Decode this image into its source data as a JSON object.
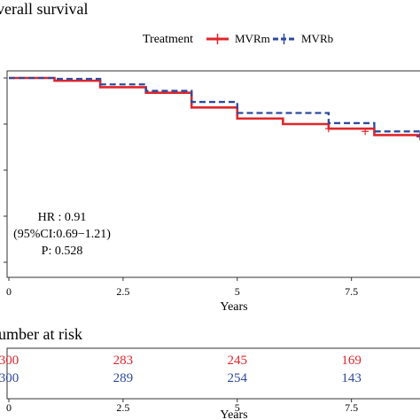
{
  "chart_data": [
    {
      "type": "line",
      "subtype": "kaplan-meier step curve",
      "title": "Overall survival",
      "title_visible": "verall survival",
      "legend": {
        "title": "Treatment",
        "placement": "top",
        "entries": [
          {
            "name": "MVRm",
            "color": "#e0262b",
            "style": "solid"
          },
          {
            "name": "MVRb",
            "color": "#2e4a9c",
            "style": "dashed"
          }
        ]
      },
      "xlabel": "Years",
      "ylabel": "",
      "xlim": [
        0,
        9
      ],
      "ylim": [
        0.0,
        1.0
      ],
      "x_ticks": [
        0,
        2.5,
        5,
        7.5
      ],
      "x_tick_labels": [
        "0",
        "2.5",
        "5",
        "7.5"
      ],
      "grid": false,
      "series": [
        {
          "name": "MVRm",
          "color": "#e0262b",
          "steps": [
            [
              0,
              1.0
            ],
            [
              1,
              0.985
            ],
            [
              2,
              0.95
            ],
            [
              3,
              0.92
            ],
            [
              4,
              0.84
            ],
            [
              5,
              0.78
            ],
            [
              6,
              0.75
            ],
            [
              7,
              0.725
            ],
            [
              8,
              0.69
            ],
            [
              9,
              0.69
            ]
          ],
          "censor_marks": [
            [
              7.0,
              0.725
            ],
            [
              7.8,
              0.71
            ],
            [
              9.0,
              0.68
            ]
          ]
        },
        {
          "name": "MVRb",
          "color": "#2e4a9c",
          "steps": [
            [
              0,
              1.0
            ],
            [
              1,
              0.995
            ],
            [
              2,
              0.965
            ],
            [
              3,
              0.93
            ],
            [
              4,
              0.87
            ],
            [
              5,
              0.81
            ],
            [
              6,
              0.81
            ],
            [
              7,
              0.755
            ],
            [
              8,
              0.71
            ],
            [
              9,
              0.7
            ]
          ],
          "censor_marks": [
            [
              9.0,
              0.685
            ]
          ]
        }
      ],
      "annotations": [
        "HR : 0.91",
        "(95%CI:0.69−1.21)",
        "P: 0.528"
      ]
    },
    {
      "type": "table",
      "title": "Number at risk",
      "title_visible": "umber at risk",
      "xlabel": "Years",
      "x_ticks": [
        0,
        2.5,
        5,
        7.5
      ],
      "x_tick_labels": [
        "0",
        "2.5",
        "5",
        "7.5"
      ],
      "rows": [
        {
          "name": "MVRm",
          "color": "#e0262b",
          "values": [
            300,
            283,
            245,
            169
          ],
          "visible_text": [
            "300",
            "283",
            "245",
            "169"
          ]
        },
        {
          "name": "MVRb",
          "color": "#2e4a9c",
          "values": [
            300,
            289,
            254,
            143
          ],
          "visible_text": [
            "300",
            "289",
            "254",
            "143"
          ]
        }
      ]
    }
  ]
}
